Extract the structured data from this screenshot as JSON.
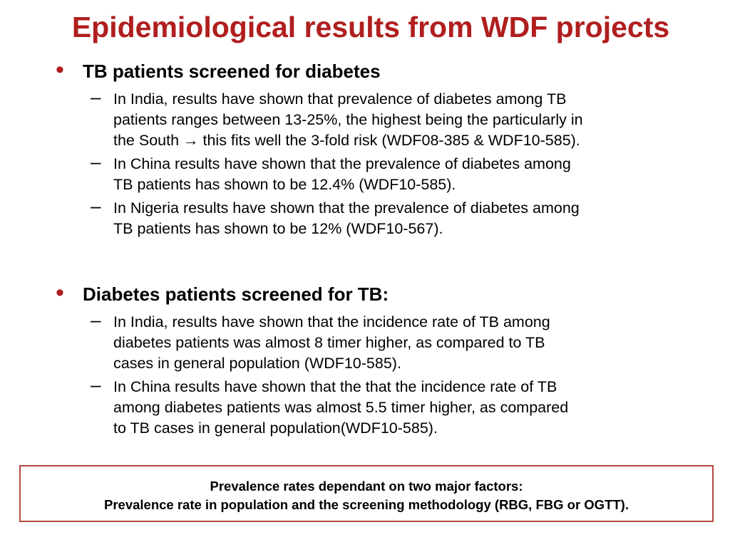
{
  "title": "Epidemiological results from WDF projects",
  "colors": {
    "title": "#b01e1e",
    "bullet": "#b01e1e",
    "box_border": "#b5493c"
  },
  "bullet_glyph": "•",
  "dash_glyph": "–",
  "sections": [
    {
      "heading": "TB patients screened for diabetes",
      "items": [
        {
          "lines": [
            "In India, results have shown that prevalence of diabetes among TB",
            "patients ranges between 13-25%, the highest being the particularly in",
            "the South → this fits well the 3-fold risk (WDF08-385 & WDF10-585)."
          ]
        },
        {
          "lines": [
            "In China results have shown that the prevalence of diabetes among",
            "TB patients has shown to be 12.4% (WDF10-585)."
          ]
        },
        {
          "lines": [
            "In Nigeria results have shown that the prevalence of diabetes among",
            "TB patients has shown to be 12% (WDF10-567)."
          ]
        }
      ]
    },
    {
      "heading": "Diabetes patients screened for TB:",
      "items": [
        {
          "lines": [
            "In India, results have shown that  the incidence rate of TB among",
            "diabetes patients was almost 8 timer higher, as compared to TB",
            "cases in general population (WDF10-585)."
          ]
        },
        {
          "lines": [
            "In China results have shown that the that  the incidence rate of TB",
            "among diabetes patients was almost 5.5 timer higher, as compared",
            "to TB cases in general population(WDF10-585)."
          ]
        }
      ]
    }
  ],
  "note": {
    "line1": "Prevalence rates dependant on two major factors:",
    "line2": "Prevalence rate in population and the screening methodology (RBG, FBG or OGTT)."
  }
}
